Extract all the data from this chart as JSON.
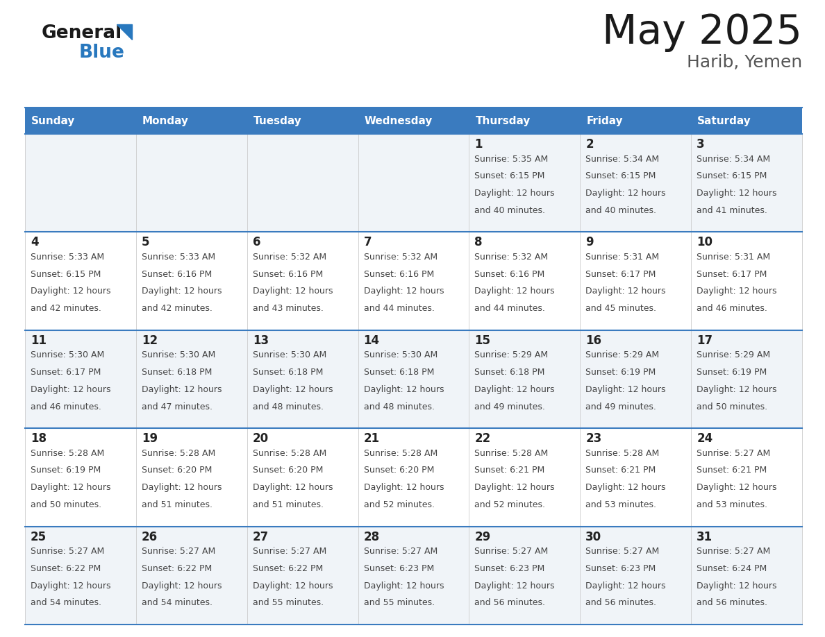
{
  "title": "May 2025",
  "subtitle": "Harib, Yemen",
  "days_of_week": [
    "Sunday",
    "Monday",
    "Tuesday",
    "Wednesday",
    "Thursday",
    "Friday",
    "Saturday"
  ],
  "header_bg": "#3a7bbf",
  "header_text": "#ffffff",
  "row_bg_odd": "#f0f4f8",
  "row_bg_even": "#ffffff",
  "cell_border": "#3a7bbf",
  "day_num_color": "#222222",
  "text_color": "#444444",
  "title_color": "#1a1a1a",
  "subtitle_color": "#555555",
  "logo_general_color": "#1a1a1a",
  "logo_blue_color": "#2878be",
  "weeks": [
    [
      {
        "day": null,
        "sunrise": null,
        "sunset": null,
        "daylight": null
      },
      {
        "day": null,
        "sunrise": null,
        "sunset": null,
        "daylight": null
      },
      {
        "day": null,
        "sunrise": null,
        "sunset": null,
        "daylight": null
      },
      {
        "day": null,
        "sunrise": null,
        "sunset": null,
        "daylight": null
      },
      {
        "day": 1,
        "sunrise": "5:35 AM",
        "sunset": "6:15 PM",
        "daylight": "12 hours and 40 minutes."
      },
      {
        "day": 2,
        "sunrise": "5:34 AM",
        "sunset": "6:15 PM",
        "daylight": "12 hours and 40 minutes."
      },
      {
        "day": 3,
        "sunrise": "5:34 AM",
        "sunset": "6:15 PM",
        "daylight": "12 hours and 41 minutes."
      }
    ],
    [
      {
        "day": 4,
        "sunrise": "5:33 AM",
        "sunset": "6:15 PM",
        "daylight": "12 hours and 42 minutes."
      },
      {
        "day": 5,
        "sunrise": "5:33 AM",
        "sunset": "6:16 PM",
        "daylight": "12 hours and 42 minutes."
      },
      {
        "day": 6,
        "sunrise": "5:32 AM",
        "sunset": "6:16 PM",
        "daylight": "12 hours and 43 minutes."
      },
      {
        "day": 7,
        "sunrise": "5:32 AM",
        "sunset": "6:16 PM",
        "daylight": "12 hours and 44 minutes."
      },
      {
        "day": 8,
        "sunrise": "5:32 AM",
        "sunset": "6:16 PM",
        "daylight": "12 hours and 44 minutes."
      },
      {
        "day": 9,
        "sunrise": "5:31 AM",
        "sunset": "6:17 PM",
        "daylight": "12 hours and 45 minutes."
      },
      {
        "day": 10,
        "sunrise": "5:31 AM",
        "sunset": "6:17 PM",
        "daylight": "12 hours and 46 minutes."
      }
    ],
    [
      {
        "day": 11,
        "sunrise": "5:30 AM",
        "sunset": "6:17 PM",
        "daylight": "12 hours and 46 minutes."
      },
      {
        "day": 12,
        "sunrise": "5:30 AM",
        "sunset": "6:18 PM",
        "daylight": "12 hours and 47 minutes."
      },
      {
        "day": 13,
        "sunrise": "5:30 AM",
        "sunset": "6:18 PM",
        "daylight": "12 hours and 48 minutes."
      },
      {
        "day": 14,
        "sunrise": "5:30 AM",
        "sunset": "6:18 PM",
        "daylight": "12 hours and 48 minutes."
      },
      {
        "day": 15,
        "sunrise": "5:29 AM",
        "sunset": "6:18 PM",
        "daylight": "12 hours and 49 minutes."
      },
      {
        "day": 16,
        "sunrise": "5:29 AM",
        "sunset": "6:19 PM",
        "daylight": "12 hours and 49 minutes."
      },
      {
        "day": 17,
        "sunrise": "5:29 AM",
        "sunset": "6:19 PM",
        "daylight": "12 hours and 50 minutes."
      }
    ],
    [
      {
        "day": 18,
        "sunrise": "5:28 AM",
        "sunset": "6:19 PM",
        "daylight": "12 hours and 50 minutes."
      },
      {
        "day": 19,
        "sunrise": "5:28 AM",
        "sunset": "6:20 PM",
        "daylight": "12 hours and 51 minutes."
      },
      {
        "day": 20,
        "sunrise": "5:28 AM",
        "sunset": "6:20 PM",
        "daylight": "12 hours and 51 minutes."
      },
      {
        "day": 21,
        "sunrise": "5:28 AM",
        "sunset": "6:20 PM",
        "daylight": "12 hours and 52 minutes."
      },
      {
        "day": 22,
        "sunrise": "5:28 AM",
        "sunset": "6:21 PM",
        "daylight": "12 hours and 52 minutes."
      },
      {
        "day": 23,
        "sunrise": "5:28 AM",
        "sunset": "6:21 PM",
        "daylight": "12 hours and 53 minutes."
      },
      {
        "day": 24,
        "sunrise": "5:27 AM",
        "sunset": "6:21 PM",
        "daylight": "12 hours and 53 minutes."
      }
    ],
    [
      {
        "day": 25,
        "sunrise": "5:27 AM",
        "sunset": "6:22 PM",
        "daylight": "12 hours and 54 minutes."
      },
      {
        "day": 26,
        "sunrise": "5:27 AM",
        "sunset": "6:22 PM",
        "daylight": "12 hours and 54 minutes."
      },
      {
        "day": 27,
        "sunrise": "5:27 AM",
        "sunset": "6:22 PM",
        "daylight": "12 hours and 55 minutes."
      },
      {
        "day": 28,
        "sunrise": "5:27 AM",
        "sunset": "6:23 PM",
        "daylight": "12 hours and 55 minutes."
      },
      {
        "day": 29,
        "sunrise": "5:27 AM",
        "sunset": "6:23 PM",
        "daylight": "12 hours and 56 minutes."
      },
      {
        "day": 30,
        "sunrise": "5:27 AM",
        "sunset": "6:23 PM",
        "daylight": "12 hours and 56 minutes."
      },
      {
        "day": 31,
        "sunrise": "5:27 AM",
        "sunset": "6:24 PM",
        "daylight": "12 hours and 56 minutes."
      }
    ]
  ]
}
